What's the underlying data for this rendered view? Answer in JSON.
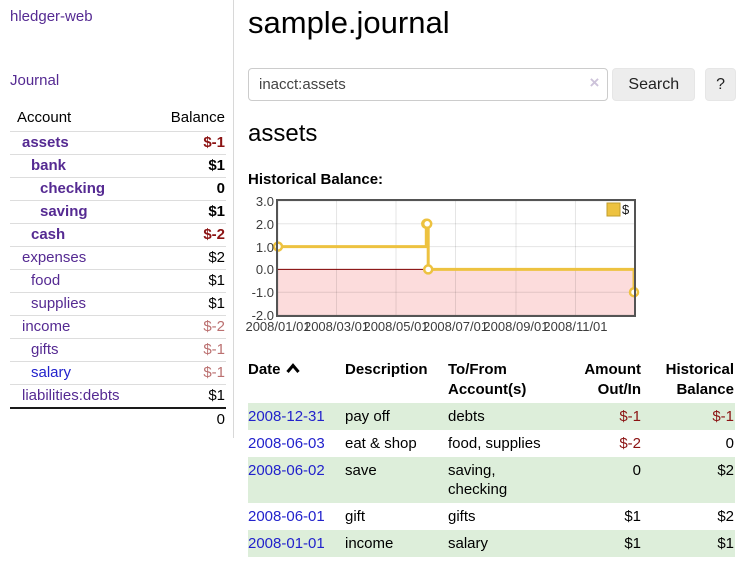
{
  "app": {
    "brand": "hledger-web",
    "nav_journal": "Journal"
  },
  "sidebar": {
    "col_account": "Account",
    "col_balance": "Balance",
    "accounts": [
      {
        "name": "assets",
        "depth": 1,
        "matched": true,
        "balance": "$-1",
        "bal_class": "neg-strong",
        "link": "purple"
      },
      {
        "name": "bank",
        "depth": 2,
        "matched": true,
        "balance": "$1",
        "bal_class": "",
        "link": "purple"
      },
      {
        "name": "checking",
        "depth": 3,
        "matched": true,
        "balance": "0",
        "bal_class": "",
        "link": "purple"
      },
      {
        "name": "saving",
        "depth": 3,
        "matched": true,
        "balance": "$1",
        "bal_class": "",
        "link": "purple"
      },
      {
        "name": "cash",
        "depth": 2,
        "matched": true,
        "balance": "$-2",
        "bal_class": "neg-strong",
        "link": "purple"
      },
      {
        "name": "expenses",
        "depth": 1,
        "matched": false,
        "balance": "$2",
        "bal_class": "",
        "link": "purple"
      },
      {
        "name": "food",
        "depth": 2,
        "matched": false,
        "balance": "$1",
        "bal_class": "",
        "link": "purple"
      },
      {
        "name": "supplies",
        "depth": 2,
        "matched": false,
        "balance": "$1",
        "bal_class": "",
        "link": "purple"
      },
      {
        "name": "income",
        "depth": 1,
        "matched": false,
        "balance": "$-2",
        "bal_class": "neg-soft",
        "link": "purple"
      },
      {
        "name": "gifts",
        "depth": 2,
        "matched": false,
        "balance": "$-1",
        "bal_class": "neg-soft",
        "link": "purple"
      },
      {
        "name": "salary",
        "depth": 2,
        "matched": false,
        "balance": "$-1",
        "bal_class": "neg-soft",
        "link": "blue"
      },
      {
        "name": "liabilities:debts",
        "depth": 1,
        "matched": false,
        "balance": "$1",
        "bal_class": "",
        "link": "purple"
      }
    ],
    "total": "0"
  },
  "header": {
    "title": "sample.journal"
  },
  "search": {
    "value": "inacct:assets",
    "clear_icon": "×",
    "button": "Search",
    "help_button": "?"
  },
  "account_page": {
    "heading": "assets",
    "chart_label": "Historical Balance:"
  },
  "chart_data": {
    "type": "line",
    "title": "Historical Balance",
    "step": "after",
    "series": [
      {
        "name": "$",
        "color": "#edc240",
        "points": [
          [
            "2008-01-01",
            1
          ],
          [
            "2008-06-01",
            2
          ],
          [
            "2008-06-02",
            2
          ],
          [
            "2008-06-03",
            0
          ],
          [
            "2008-12-31",
            -1
          ]
        ]
      }
    ],
    "xlim": [
      "2008-01-01",
      "2008-12-31"
    ],
    "ylim": [
      -2,
      3
    ],
    "x_ticks": [
      "2008/01/01",
      "2008/03/01",
      "2008/05/01",
      "2008/07/01",
      "2008/09/01",
      "2008/11/01"
    ],
    "y_ticks": [
      3,
      2,
      1,
      0,
      -1,
      -2
    ],
    "grid": true,
    "legend": {
      "label": "$",
      "position": "top-right"
    },
    "negative_region_fill": "#fcdcdc",
    "zero_line_color": "#800000",
    "border_color": "#545454"
  },
  "register": {
    "columns": [
      {
        "label": "Date",
        "align": "left",
        "sorted": "asc"
      },
      {
        "label": "Description",
        "align": "left"
      },
      {
        "label": "To/From Account(s)",
        "align": "left"
      },
      {
        "label": "Amount Out/In",
        "align": "right"
      },
      {
        "label": "Historical Balance",
        "align": "right"
      }
    ],
    "rows": [
      {
        "date": "2008-12-31",
        "description": "pay off",
        "accounts": "debts",
        "amount": "$-1",
        "amount_neg": true,
        "balance": "$-1",
        "balance_neg": true
      },
      {
        "date": "2008-06-03",
        "description": "eat & shop",
        "accounts": "food, supplies",
        "amount": "$-2",
        "amount_neg": true,
        "balance": "0",
        "balance_neg": false
      },
      {
        "date": "2008-06-02",
        "description": "save",
        "accounts": "saving, checking",
        "amount": "0",
        "amount_neg": false,
        "balance": "$2",
        "balance_neg": false
      },
      {
        "date": "2008-06-01",
        "description": "gift",
        "accounts": "gifts",
        "amount": "$1",
        "amount_neg": false,
        "balance": "$2",
        "balance_neg": false
      },
      {
        "date": "2008-01-01",
        "description": "income",
        "accounts": "salary",
        "amount": "$1",
        "amount_neg": false,
        "balance": "$1",
        "balance_neg": false
      }
    ]
  }
}
